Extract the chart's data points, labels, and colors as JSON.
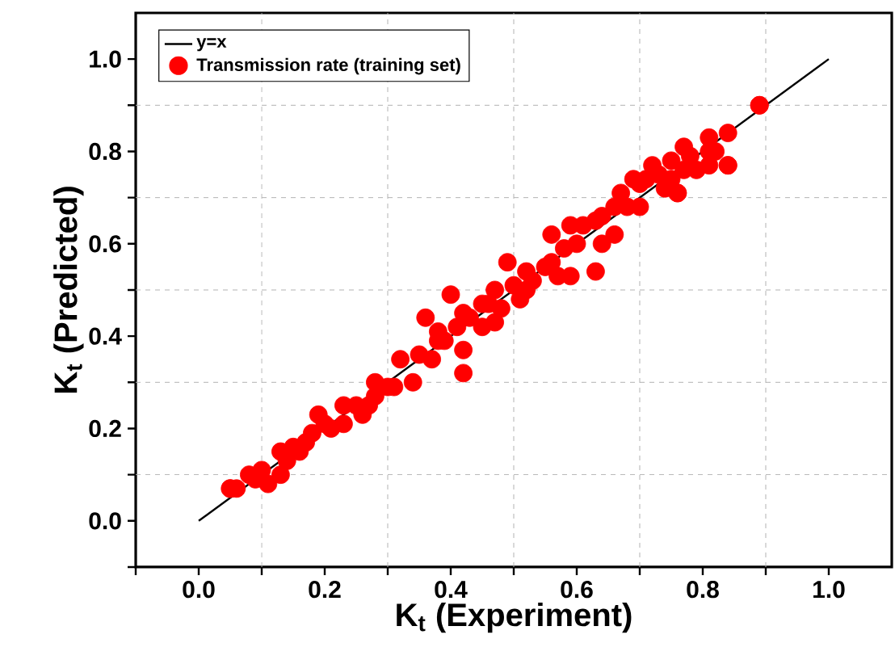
{
  "chart_data": {
    "type": "scatter",
    "xlabel": "K$_{t}$ (Experiment)",
    "ylabel": "K$_{t}$ (Predicted)",
    "xlim": [
      -0.1,
      1.1
    ],
    "ylim": [
      -0.1,
      1.1
    ],
    "xticks": [
      {
        "value": -0.1,
        "label": null
      },
      {
        "value": 0,
        "label": "0.0"
      },
      {
        "value": 0.1,
        "label": null
      },
      {
        "value": 0.2,
        "label": "0.2"
      },
      {
        "value": 0.3,
        "label": null
      },
      {
        "value": 0.4,
        "label": "0.4"
      },
      {
        "value": 0.5,
        "label": null
      },
      {
        "value": 0.6,
        "label": "0.6"
      },
      {
        "value": 0.7,
        "label": null
      },
      {
        "value": 0.8,
        "label": "0.8"
      },
      {
        "value": 0.9,
        "label": null
      },
      {
        "value": 1.0,
        "label": "1.0"
      }
    ],
    "yticks": [
      {
        "value": -0.1,
        "label": null
      },
      {
        "value": 0,
        "label": "0.0"
      },
      {
        "value": 0.1,
        "label": null
      },
      {
        "value": 0.2,
        "label": "0.2"
      },
      {
        "value": 0.3,
        "label": null
      },
      {
        "value": 0.4,
        "label": "0.4"
      },
      {
        "value": 0.5,
        "label": null
      },
      {
        "value": 0.6,
        "label": "0.6"
      },
      {
        "value": 0.7,
        "label": null
      },
      {
        "value": 0.8,
        "label": "0.8"
      },
      {
        "value": 0.9,
        "label": null
      },
      {
        "value": 1.0,
        "label": "1.0"
      }
    ],
    "grid": true,
    "legend": "top left",
    "marker": "circle",
    "series": [
      {
        "name": "y=x",
        "type": "line",
        "color": "#000000",
        "line_style": "solid",
        "marker": "none",
        "x": [
          0,
          1
        ],
        "values": [
          0,
          1
        ]
      },
      {
        "name": "Transmission rate (training set)",
        "color": "#ff0000",
        "x": [
          0.05,
          0.06,
          0.08,
          0.1,
          0.11,
          0.13,
          0.13,
          0.15,
          0.16,
          0.18,
          0.19,
          0.21,
          0.23,
          0.23,
          0.26,
          0.27,
          0.28,
          0.3,
          0.31,
          0.32,
          0.34,
          0.36,
          0.37,
          0.38,
          0.39,
          0.4,
          0.41,
          0.42,
          0.42,
          0.42,
          0.45,
          0.45,
          0.47,
          0.47,
          0.48,
          0.49,
          0.5,
          0.51,
          0.52,
          0.52,
          0.55,
          0.56,
          0.57,
          0.58,
          0.59,
          0.59,
          0.61,
          0.63,
          0.63,
          0.64,
          0.66,
          0.66,
          0.67,
          0.68,
          0.69,
          0.7,
          0.71,
          0.72,
          0.74,
          0.75,
          0.76,
          0.77,
          0.81,
          0.84,
          0.89,
          0.89,
          0.84,
          0.84,
          0.77,
          0.81,
          0.79,
          0.76,
          0.81,
          0.05,
          0.09,
          0.14,
          0.17,
          0.2,
          0.25,
          0.28,
          0.35,
          0.38,
          0.43,
          0.46,
          0.53,
          0.56,
          0.6,
          0.64,
          0.7,
          0.73,
          0.75,
          0.78,
          0.82
        ],
        "values": [
          0.07,
          0.07,
          0.1,
          0.11,
          0.08,
          0.1,
          0.15,
          0.16,
          0.15,
          0.19,
          0.23,
          0.2,
          0.25,
          0.21,
          0.23,
          0.25,
          0.3,
          0.29,
          0.29,
          0.35,
          0.3,
          0.44,
          0.35,
          0.41,
          0.39,
          0.49,
          0.42,
          0.32,
          0.37,
          0.45,
          0.47,
          0.42,
          0.43,
          0.5,
          0.46,
          0.56,
          0.51,
          0.48,
          0.5,
          0.54,
          0.55,
          0.62,
          0.53,
          0.59,
          0.53,
          0.64,
          0.64,
          0.54,
          0.65,
          0.6,
          0.62,
          0.68,
          0.71,
          0.68,
          0.74,
          0.68,
          0.74,
          0.77,
          0.72,
          0.78,
          0.71,
          0.76,
          0.77,
          0.77,
          0.9,
          0.9,
          0.84,
          0.77,
          0.81,
          0.83,
          0.76,
          0.71,
          0.8,
          0.07,
          0.09,
          0.13,
          0.17,
          0.21,
          0.25,
          0.27,
          0.36,
          0.39,
          0.44,
          0.47,
          0.52,
          0.56,
          0.6,
          0.66,
          0.73,
          0.75,
          0.74,
          0.79,
          0.8
        ]
      }
    ]
  }
}
